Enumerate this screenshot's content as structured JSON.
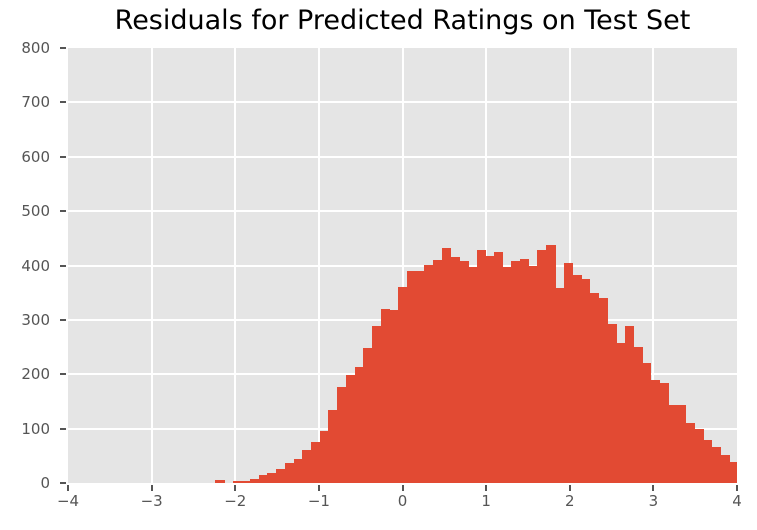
{
  "chart_data": {
    "type": "bar",
    "subtype": "histogram",
    "title": "Residuals for Predicted Ratings on Test Set",
    "xlabel": "",
    "ylabel": "",
    "xlim": [
      -4,
      4
    ],
    "ylim": [
      0,
      800
    ],
    "grid": true,
    "legend_position": "none",
    "x_ticks": [
      {
        "value": -4,
        "label": "−4"
      },
      {
        "value": -3,
        "label": "−3"
      },
      {
        "value": -2,
        "label": "−2"
      },
      {
        "value": -1,
        "label": "−1"
      },
      {
        "value": 0,
        "label": "0"
      },
      {
        "value": 1,
        "label": "1"
      },
      {
        "value": 2,
        "label": "2"
      },
      {
        "value": 3,
        "label": "3"
      },
      {
        "value": 4,
        "label": "4"
      }
    ],
    "y_ticks": [
      {
        "value": 0,
        "label": "0"
      },
      {
        "value": 100,
        "label": "100"
      },
      {
        "value": 200,
        "label": "200"
      },
      {
        "value": 300,
        "label": "300"
      },
      {
        "value": 400,
        "label": "400"
      },
      {
        "value": 500,
        "label": "500"
      },
      {
        "value": 600,
        "label": "600"
      },
      {
        "value": 700,
        "label": "700"
      },
      {
        "value": 800,
        "label": "800"
      }
    ],
    "bin_start": -2.24,
    "bin_width": 0.10417,
    "counts": [
      6,
      0,
      4,
      4,
      8,
      15,
      19,
      26,
      36,
      45,
      61,
      76,
      95,
      135,
      176,
      199,
      214,
      249,
      288,
      320,
      318,
      361,
      389,
      390,
      401,
      411,
      433,
      416,
      408,
      397,
      429,
      418,
      424,
      397,
      408,
      412,
      399,
      428,
      437,
      358,
      404,
      383,
      376,
      349,
      340,
      292,
      258,
      289,
      251,
      221,
      190,
      184,
      143,
      143,
      110,
      99,
      79,
      67,
      52,
      39
    ],
    "colors": {
      "bar": "#E24A33",
      "plot_background": "#E5E5E5",
      "figure_background": "#FFFFFF",
      "gridline": "#FFFFFF",
      "tick": "#555555",
      "title_text": "#000000"
    }
  }
}
